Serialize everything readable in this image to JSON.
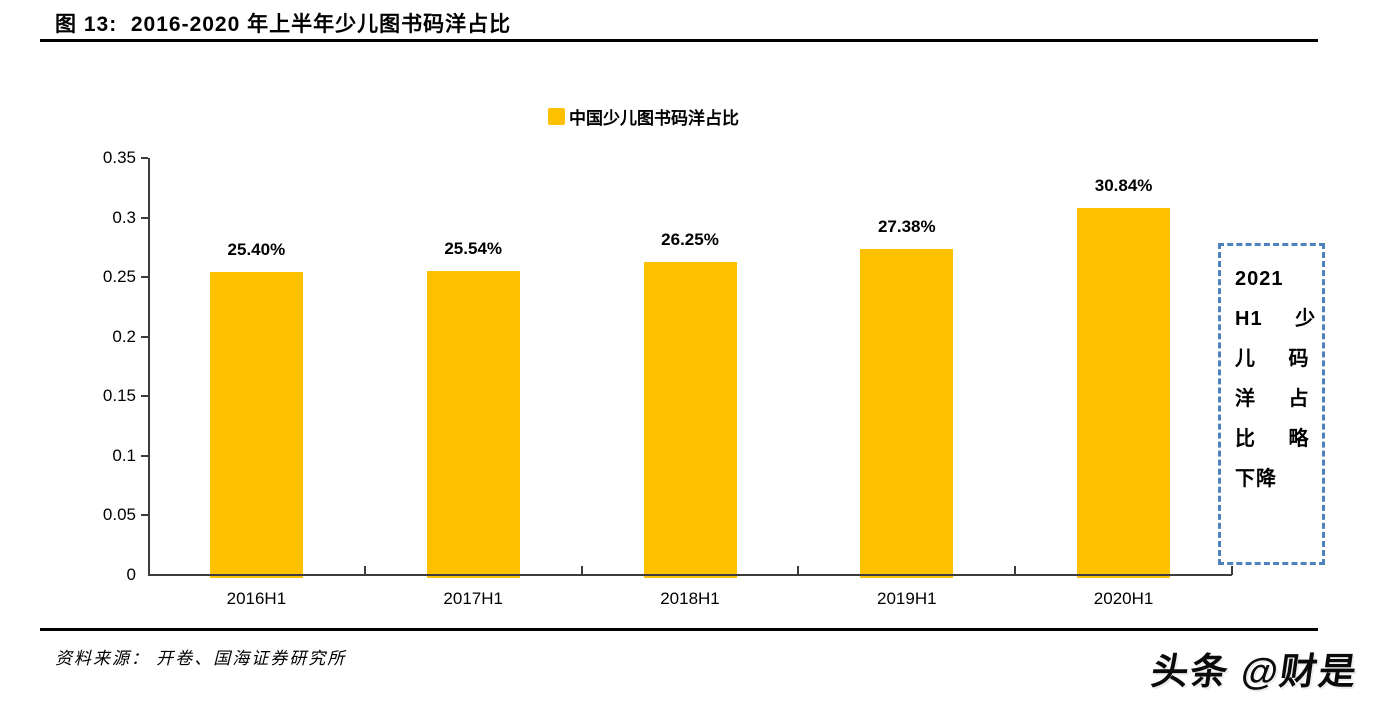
{
  "header": {
    "title": "图 13:  2016-2020 年上半年少儿图书码洋占比"
  },
  "chart_data": {
    "type": "bar",
    "title": "图 13: 2016-2020 年上半年少儿图书码洋占比",
    "legend": [
      "中国少儿图书码洋占比"
    ],
    "legend_position": "top",
    "categories": [
      "2016H1",
      "2017H1",
      "2018H1",
      "2019H1",
      "2020H1"
    ],
    "values": [
      0.254,
      0.2554,
      0.2625,
      0.2738,
      0.3084
    ],
    "value_labels": [
      "25.40%",
      "25.54%",
      "26.25%",
      "27.38%",
      "30.84%"
    ],
    "xlabel": "",
    "ylabel": "",
    "ylim": [
      0,
      0.35
    ],
    "ytick_step": 0.05,
    "grid": false,
    "bar_color": "#FFC000",
    "axis_color": "#3c3c3c"
  },
  "annotation": {
    "text": "2021 H1 少儿码洋占比略下降",
    "lines": [
      "2021",
      "H1 少",
      "儿 码",
      "洋 占",
      "比 略",
      "下降"
    ],
    "border_color": "#4E81BD"
  },
  "footer": {
    "source": "资料来源： 开卷、国海证券研究所",
    "watermark": "头条 @财是"
  }
}
